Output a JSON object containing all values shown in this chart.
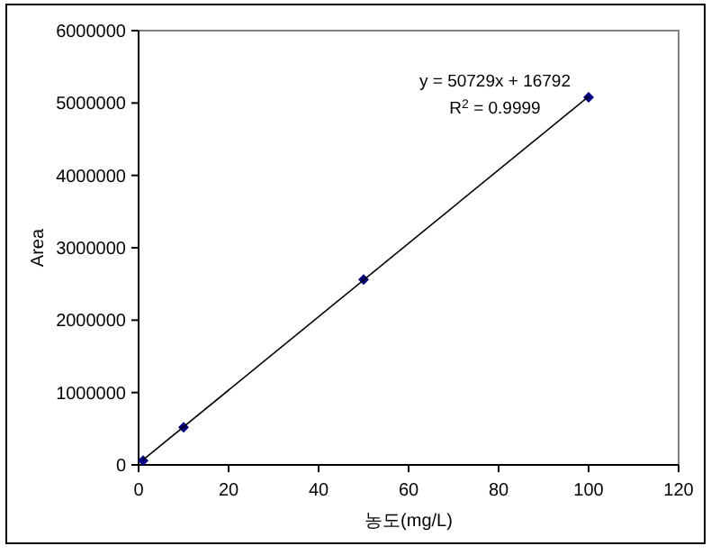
{
  "chart_data": {
    "type": "scatter",
    "xlabel": "농도(mg/L)",
    "ylabel": "Area",
    "xlim": [
      0,
      120
    ],
    "xticks": [
      0,
      20,
      40,
      60,
      80,
      100,
      120
    ],
    "ylim": [
      0,
      6000000
    ],
    "yticks": [
      0,
      1000000,
      2000000,
      3000000,
      4000000,
      5000000,
      6000000
    ],
    "marker": "diamond",
    "line_style": "solid",
    "series": [
      {
        "color": "#000080",
        "x": [
          1,
          10,
          50,
          100
        ],
        "values": [
          60000,
          520000,
          2560000,
          5080000
        ]
      },
      {
        "type": "line",
        "marker": "none",
        "color": "#000000",
        "x": [
          1,
          100
        ],
        "values": [
          70000,
          5090000
        ]
      }
    ],
    "annotations": [
      "y = 50729x + 16792",
      "R$^{2}$ = 0.9999"
    ]
  }
}
